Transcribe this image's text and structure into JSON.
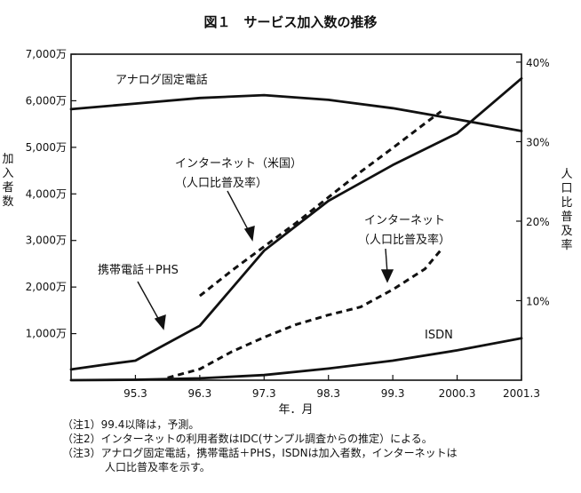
{
  "chart_data": {
    "type": "line",
    "title": "図１　サービス加入数の推移",
    "xlabel": "年．月",
    "ylabel_left": "加入者数",
    "ylabel_right": "人口比普及率",
    "categories": [
      "95.3",
      "96.3",
      "97.3",
      "98.3",
      "99.3",
      "2000.3",
      "2001.3"
    ],
    "x_range": [
      1994.25,
      2001.25
    ],
    "left_axis": {
      "range": [
        0,
        7000
      ],
      "ticks": [
        1000,
        2000,
        3000,
        4000,
        5000,
        6000,
        7000
      ],
      "tick_labels": [
        "1,000万",
        "2,000万",
        "3,000万",
        "4,000万",
        "5,000万",
        "6,000万",
        "7,000万"
      ]
    },
    "right_axis": {
      "range": [
        0,
        41
      ],
      "ticks": [
        10,
        20,
        30,
        40
      ],
      "tick_labels": [
        "10%",
        "20%",
        "30%",
        "40%"
      ]
    },
    "series": [
      {
        "name": "アナログ固定電話",
        "axis": "left",
        "style": "solid",
        "points": [
          [
            1994.25,
            5820
          ],
          [
            1995.25,
            5940
          ],
          [
            1996.25,
            6060
          ],
          [
            1997.25,
            6120
          ],
          [
            1998.25,
            6020
          ],
          [
            1999.25,
            5840
          ],
          [
            2000.25,
            5600
          ],
          [
            2001.25,
            5350
          ]
        ]
      },
      {
        "name": "携帯電話＋PHS",
        "axis": "left",
        "style": "solid",
        "points": [
          [
            1994.25,
            230
          ],
          [
            1994.75,
            330
          ],
          [
            1995.25,
            420
          ],
          [
            1996.25,
            1170
          ],
          [
            1997.25,
            2780
          ],
          [
            1998.25,
            3850
          ],
          [
            1999.25,
            4620
          ],
          [
            2000.25,
            5300
          ],
          [
            2001.25,
            6480
          ]
        ]
      },
      {
        "name": "ISDN",
        "axis": "left",
        "style": "solid",
        "points": [
          [
            1994.25,
            0
          ],
          [
            1995.25,
            10
          ],
          [
            1996.25,
            40
          ],
          [
            1997.25,
            110
          ],
          [
            1998.25,
            250
          ],
          [
            1999.25,
            420
          ],
          [
            2000.25,
            640
          ],
          [
            2001.25,
            900
          ]
        ]
      },
      {
        "name": "インターネット（米国）（人口比普及率）",
        "axis": "right",
        "style": "dashed",
        "points": [
          [
            1996.25,
            10.6
          ],
          [
            1996.75,
            13.8
          ],
          [
            1997.25,
            16.8
          ],
          [
            1997.75,
            19.8
          ],
          [
            1998.25,
            23.0
          ],
          [
            1998.75,
            26.2
          ],
          [
            1999.25,
            29.2
          ],
          [
            1999.75,
            32.3
          ],
          [
            2000.0,
            33.8
          ]
        ]
      },
      {
        "name": "インターネット（人口比普及率）",
        "axis": "right",
        "style": "dashed",
        "points": [
          [
            1995.75,
            0.3
          ],
          [
            1996.25,
            1.4
          ],
          [
            1996.75,
            3.6
          ],
          [
            1997.25,
            5.4
          ],
          [
            1997.75,
            7.0
          ],
          [
            1998.25,
            8.2
          ],
          [
            1998.75,
            9.2
          ],
          [
            1999.25,
            11.4
          ],
          [
            1999.75,
            14.0
          ],
          [
            2000.0,
            16.4
          ]
        ]
      }
    ],
    "annotations": {
      "analog": "アナログ固定電話",
      "us_internet_line1": "インターネット（米国）",
      "us_internet_line2": "（人口比普及率）",
      "internet_line1": "インターネット",
      "internet_line2": "（人口比普及率）",
      "mobile": "携帯電話＋PHS",
      "isdn": "ISDN"
    },
    "grid": false
  },
  "notes": [
    {
      "mark": "（注1）",
      "text": "99.4以降は，予測。"
    },
    {
      "mark": "（注2）",
      "text": "インターネットの利用者数はIDC(サンプル調査からの推定）による。"
    },
    {
      "mark": "（注3）",
      "text": "アナログ固定電話，携帯電話＋PHS，ISDNは加入者数，インターネットは"
    },
    {
      "mark": "",
      "text": "人口比普及率を示す。"
    }
  ]
}
